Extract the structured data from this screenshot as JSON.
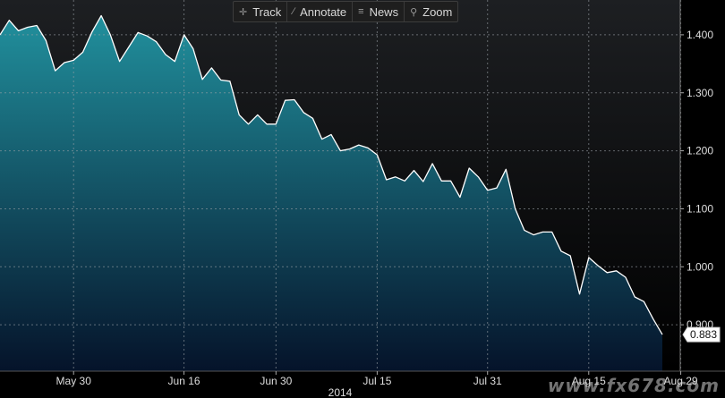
{
  "toolbar": {
    "items": [
      {
        "label": "Track",
        "icon": "crosshair-icon"
      },
      {
        "label": "Annotate",
        "icon": "pencil-icon"
      },
      {
        "label": "News",
        "icon": "news-icon"
      },
      {
        "label": "Zoom",
        "icon": "magnifier-icon"
      }
    ]
  },
  "chart_data": {
    "type": "area",
    "title": "",
    "xlabel": "2014",
    "ylabel": "",
    "ylim": [
      0.82,
      1.46
    ],
    "yticks": [
      0.9,
      1.0,
      1.1,
      1.2,
      1.3,
      1.4
    ],
    "ytick_labels": [
      "0.900",
      "1.000",
      "1.100",
      "1.200",
      "1.300",
      "1.400"
    ],
    "xticks": [
      {
        "label": "May 30",
        "index": 8
      },
      {
        "label": "Jun 16",
        "index": 20
      },
      {
        "label": "Jun 30",
        "index": 30
      },
      {
        "label": "Jul 15",
        "index": 41
      },
      {
        "label": "Jul 31",
        "index": 53
      },
      {
        "label": "Aug 15",
        "index": 64
      },
      {
        "label": "Aug 29",
        "index": 74
      }
    ],
    "grid": true,
    "last_value_label": "0.883",
    "colors": {
      "line": "#ffffff",
      "fill_top": "#21909d",
      "fill_bottom": "#05132a",
      "background": "#000000"
    },
    "values": [
      1.4,
      1.425,
      1.407,
      1.413,
      1.416,
      1.39,
      1.338,
      1.352,
      1.356,
      1.37,
      1.405,
      1.433,
      1.4,
      1.354,
      1.379,
      1.404,
      1.398,
      1.388,
      1.366,
      1.354,
      1.4,
      1.376,
      1.323,
      1.343,
      1.322,
      1.32,
      1.262,
      1.246,
      1.262,
      1.246,
      1.246,
      1.287,
      1.288,
      1.266,
      1.256,
      1.22,
      1.228,
      1.2,
      1.203,
      1.21,
      1.205,
      1.193,
      1.15,
      1.155,
      1.148,
      1.166,
      1.147,
      1.178,
      1.148,
      1.148,
      1.12,
      1.17,
      1.155,
      1.132,
      1.136,
      1.168,
      1.1,
      1.063,
      1.055,
      1.06,
      1.06,
      1.027,
      1.019,
      0.953,
      1.016,
      1.002,
      0.99,
      0.993,
      0.982,
      0.948,
      0.94,
      0.91,
      0.883
    ]
  }
}
